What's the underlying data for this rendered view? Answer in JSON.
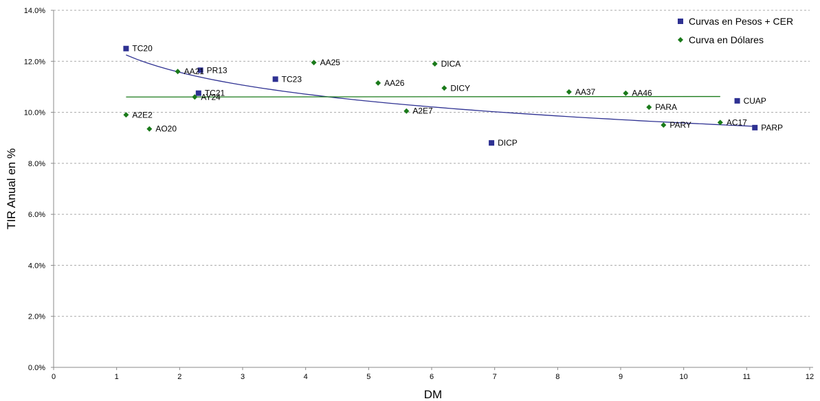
{
  "chart_data": {
    "type": "scatter",
    "title": "",
    "xlabel": "DM",
    "ylabel": "TIR Anual en %",
    "xlim": [
      0,
      12
    ],
    "ylim": [
      0,
      14
    ],
    "x_ticks": [
      "0",
      "1",
      "2",
      "3",
      "4",
      "5",
      "6",
      "7",
      "8",
      "9",
      "10",
      "11",
      "12"
    ],
    "y_ticks": [
      "0.0%",
      "2.0%",
      "4.0%",
      "6.0%",
      "8.0%",
      "10.0%",
      "12.0%",
      "14.0%"
    ],
    "grid": "horizontal dashed",
    "legend_position": "top-right",
    "series": [
      {
        "name": "Curvas en Pesos + CER",
        "marker": "square",
        "color": "#2e3192",
        "points": [
          {
            "label": "TC20",
            "x": 1.15,
            "y": 12.5
          },
          {
            "label": "PR13",
            "x": 2.33,
            "y": 11.65
          },
          {
            "label": "TC23",
            "x": 3.52,
            "y": 11.3
          },
          {
            "label": "TC21",
            "x": 2.3,
            "y": 10.75
          },
          {
            "label": "CUAP",
            "x": 10.85,
            "y": 10.45
          },
          {
            "label": "PARP",
            "x": 11.13,
            "y": 9.4
          },
          {
            "label": "DICP",
            "x": 6.95,
            "y": 8.8
          }
        ]
      },
      {
        "name": "Curva en Dólares",
        "marker": "diamond",
        "color": "#1a7a1a",
        "points": [
          {
            "label": "AA21",
            "x": 1.97,
            "y": 11.6
          },
          {
            "label": "AA25",
            "x": 4.13,
            "y": 11.95
          },
          {
            "label": "DICA",
            "x": 6.05,
            "y": 11.9
          },
          {
            "label": "AA26",
            "x": 5.15,
            "y": 11.15
          },
          {
            "label": "DICY",
            "x": 6.2,
            "y": 10.95
          },
          {
            "label": "AA37",
            "x": 8.18,
            "y": 10.8
          },
          {
            "label": "AA46",
            "x": 9.08,
            "y": 10.75
          },
          {
            "label": "AY24",
            "x": 2.24,
            "y": 10.6
          },
          {
            "label": "PARA",
            "x": 9.45,
            "y": 10.2
          },
          {
            "label": "A2E7",
            "x": 5.6,
            "y": 10.05
          },
          {
            "label": "A2E2",
            "x": 1.15,
            "y": 9.9
          },
          {
            "label": "AC17",
            "x": 10.58,
            "y": 9.6
          },
          {
            "label": "PARY",
            "x": 9.68,
            "y": 9.5
          },
          {
            "label": "AO20",
            "x": 1.52,
            "y": 9.35
          }
        ]
      }
    ],
    "trendlines": [
      {
        "series": "Curvas en Pesos + CER",
        "kind": "logarithmic",
        "color": "#2e3192",
        "x": [
          1.15,
          11.13
        ],
        "y_start": 12.25,
        "y_end": 9.45
      },
      {
        "series": "Curva en Dólares",
        "kind": "linear",
        "color": "#1a7a1a",
        "x": [
          1.15,
          10.58
        ],
        "y_start": 10.6,
        "y_end": 10.62
      }
    ]
  }
}
